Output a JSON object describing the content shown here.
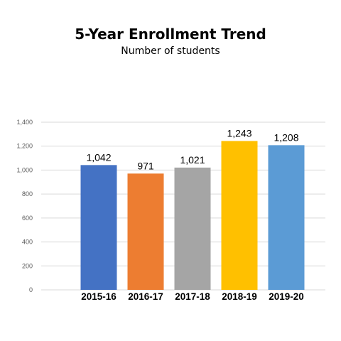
{
  "chart_data": {
    "type": "bar",
    "title": "5-Year Enrollment Trend",
    "subtitle": "Number of students",
    "xlabel": "",
    "ylabel": "",
    "categories": [
      "2015-16",
      "2016-17",
      "2017-18",
      "2018-19",
      "2019-20"
    ],
    "values": [
      1042,
      971,
      1021,
      1243,
      1208
    ],
    "data_labels": [
      "1,042",
      "971",
      "1,021",
      "1,243",
      "1,208"
    ],
    "colors": [
      "#4472C4",
      "#ED7D31",
      "#A5A5A5",
      "#FFC000",
      "#5B9BD5"
    ],
    "ylim": [
      0,
      1400
    ],
    "yticks": [
      0,
      200,
      400,
      600,
      800,
      1000,
      1200,
      1400
    ],
    "ytick_labels": [
      "0",
      "200",
      "400",
      "600",
      "800",
      "1,000",
      "1,200",
      "1,400"
    ],
    "grid": true,
    "legend": "none"
  }
}
